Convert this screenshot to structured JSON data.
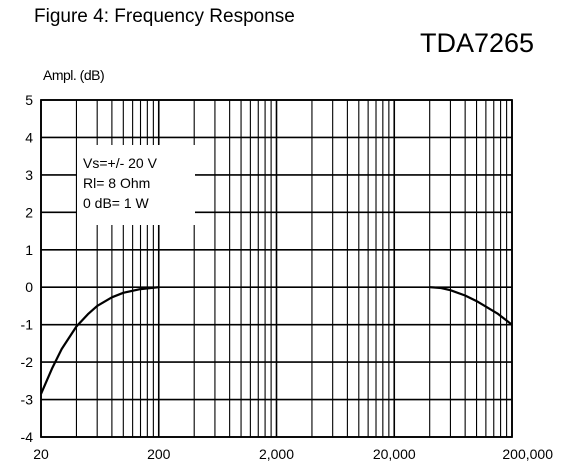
{
  "figure_title": "Figure 4: Frequency Response",
  "part_number": "TDA7265",
  "chart_data": {
    "type": "line",
    "ylabel": "Ampl. (dB)",
    "xlabel": "",
    "x_scale": "log",
    "xlim": [
      20,
      200000
    ],
    "ylim": [
      -4,
      5
    ],
    "x_ticks": [
      20,
      200,
      2000,
      20000,
      200000
    ],
    "x_tick_labels": [
      "20",
      "200",
      "2,000",
      "20,000",
      "200,000"
    ],
    "y_ticks": [
      -4,
      -3,
      -2,
      -1,
      0,
      1,
      2,
      3,
      4,
      5
    ],
    "y_tick_labels": [
      "-4",
      "-3",
      "-2",
      "-1",
      "0",
      "1",
      "2",
      "3",
      "4",
      "5"
    ],
    "grid": true,
    "annotation": [
      "Vs=+/- 20 V",
      "Rl= 8 Ohm",
      "0 dB= 1 W"
    ],
    "series": [
      {
        "color": "#000000",
        "segments": [
          [
            [
              20,
              -2.85
            ],
            [
              25,
              -2.15
            ],
            [
              30,
              -1.65
            ],
            [
              40,
              -1.05
            ],
            [
              50,
              -0.72
            ],
            [
              60,
              -0.5
            ],
            [
              80,
              -0.27
            ],
            [
              100,
              -0.15
            ],
            [
              140,
              -0.05
            ],
            [
              200,
              0.0
            ]
          ],
          [
            [
              40000,
              0.0
            ],
            [
              50000,
              -0.02
            ],
            [
              60000,
              -0.08
            ],
            [
              80000,
              -0.22
            ],
            [
              100000,
              -0.37
            ],
            [
              150000,
              -0.7
            ],
            [
              200000,
              -1.0
            ]
          ]
        ]
      }
    ]
  }
}
